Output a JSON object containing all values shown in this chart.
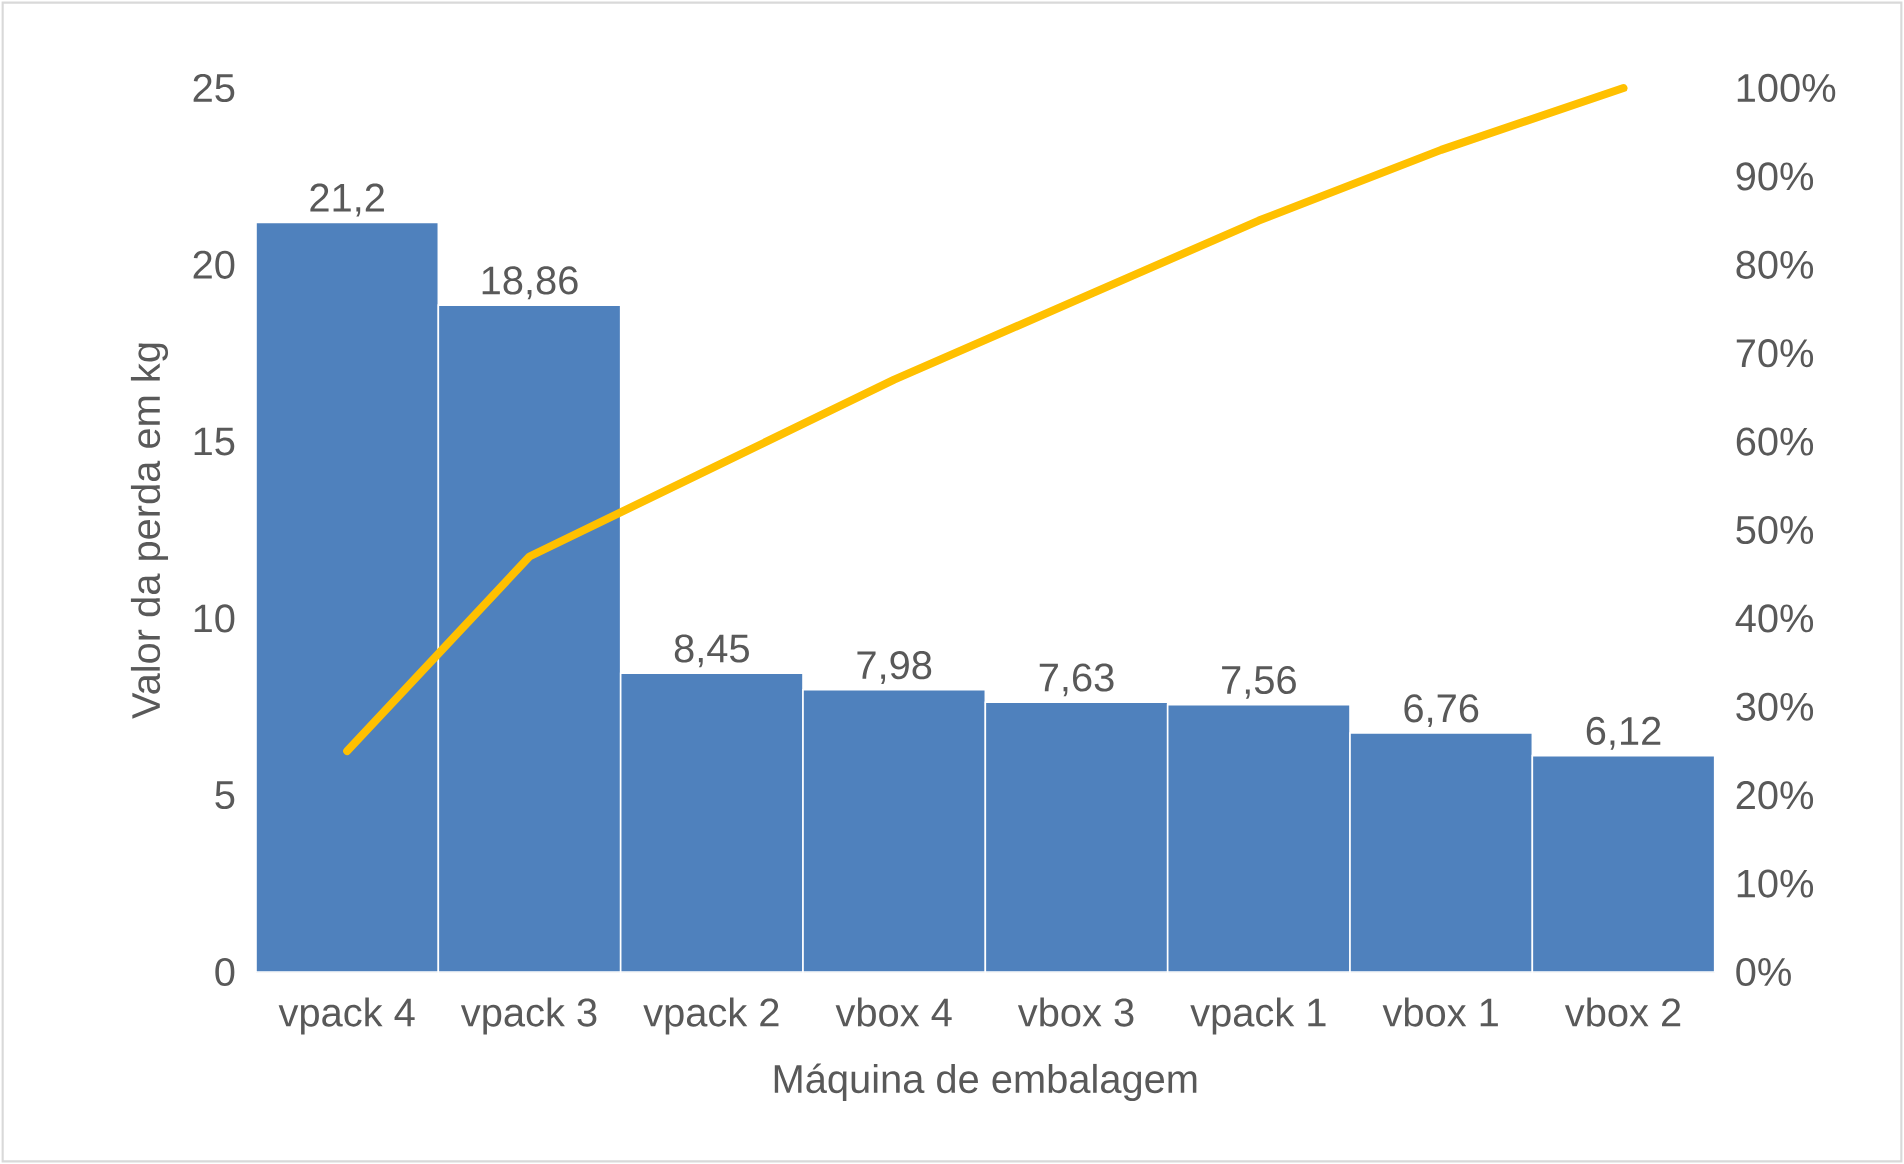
{
  "chart_data": {
    "type": "bar",
    "xlabel": "Máquina de embalagem",
    "ylabel": "Valor da perda em kg",
    "categories": [
      "vpack 4",
      "vpack 3",
      "vpack 2",
      "vbox 4",
      "vbox 3",
      "vpack 1",
      "vbox 1",
      "vbox 2"
    ],
    "series": [
      {
        "color": "#4f81bd",
        "values": [
          21.2,
          18.86,
          8.45,
          7.98,
          7.63,
          7.56,
          6.76,
          6.12
        ],
        "value_labels": [
          "21,2",
          "18,86",
          "8,45",
          "7,98",
          "7,63",
          "7,56",
          "6,76",
          "6,12"
        ]
      },
      {
        "type": "line",
        "axis": "y2",
        "color": "#ffc000",
        "values": [
          25,
          47,
          57,
          67,
          76,
          85,
          93,
          100
        ]
      }
    ],
    "ylim": [
      0,
      25
    ],
    "yticks": [
      0,
      5,
      10,
      15,
      20,
      25
    ],
    "y2lim": [
      0,
      100
    ],
    "y2ticks": [
      {
        "value": 0,
        "label": "0%"
      },
      {
        "value": 10,
        "label": "10%"
      },
      {
        "value": 20,
        "label": "20%"
      },
      {
        "value": 30,
        "label": "30%"
      },
      {
        "value": 40,
        "label": "40%"
      },
      {
        "value": 50,
        "label": "50%"
      },
      {
        "value": 60,
        "label": "60%"
      },
      {
        "value": 70,
        "label": "70%"
      },
      {
        "value": 80,
        "label": "80%"
      },
      {
        "value": 90,
        "label": "90%"
      },
      {
        "value": 100,
        "label": "100%"
      }
    ]
  }
}
